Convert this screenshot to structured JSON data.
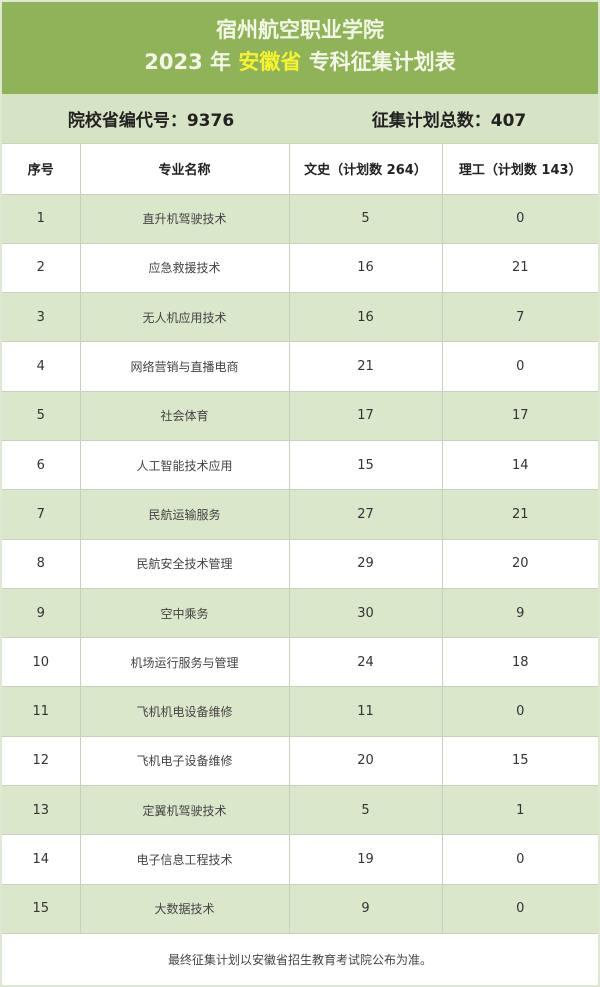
{
  "title": {
    "school": "宿州航空职业学院",
    "year": "2023 年",
    "province": "安徽省",
    "plan": "专科征集计划表"
  },
  "summary": {
    "code_label": "院校省编代号：9376",
    "total_label": "征集计划总数：407"
  },
  "headers": [
    "序号",
    "专业名称",
    "文史（计划数 264）",
    "理工（计划数 143）"
  ],
  "rows": [
    [
      "1",
      "直升机驾驶技术",
      "5",
      "0"
    ],
    [
      "2",
      "应急救援技术",
      "16",
      "21"
    ],
    [
      "3",
      "无人机应用技术",
      "16",
      "7"
    ],
    [
      "4",
      "网络营销与直播电商",
      "21",
      "0"
    ],
    [
      "5",
      "社会体育",
      "17",
      "17"
    ],
    [
      "6",
      "人工智能技术应用",
      "15",
      "14"
    ],
    [
      "7",
      "民航运输服务",
      "27",
      "21"
    ],
    [
      "8",
      "民航安全技术管理",
      "29",
      "20"
    ],
    [
      "9",
      "空中乘务",
      "30",
      "9"
    ],
    [
      "10",
      "机场运行服务与管理",
      "24",
      "18"
    ],
    [
      "11",
      "飞机机电设备维修",
      "11",
      "0"
    ],
    [
      "12",
      "飞机电子设备维修",
      "20",
      "15"
    ],
    [
      "13",
      "定翼机驾驶技术",
      "5",
      "1"
    ],
    [
      "14",
      "电子信息工程技术",
      "19",
      "0"
    ],
    [
      "15",
      "大数据技术",
      "9",
      "0"
    ]
  ],
  "footnote": "最终征集计划以安徽省招生教育考试院公布为准。",
  "colors": {
    "title_bg": "#90b35a",
    "summary_bg": "#d7e3c5",
    "row_alt": "#dbe7cb",
    "highlight": "#f5f232"
  }
}
